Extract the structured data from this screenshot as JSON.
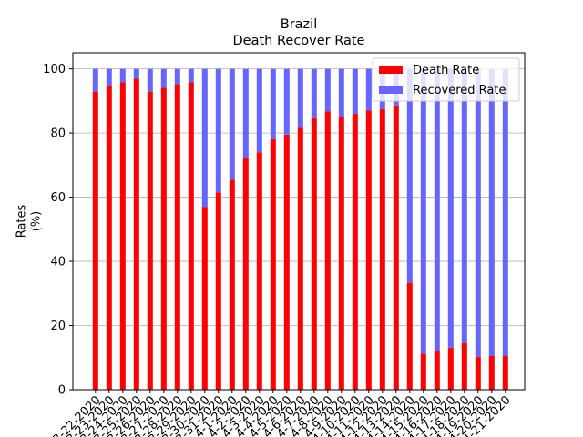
{
  "chart_data": {
    "type": "bar",
    "stacked": true,
    "title": "Brazil",
    "subtitle": "Death Recover Rate",
    "xlabel": "",
    "ylabel": "Rates\n(%)",
    "ylim": [
      0,
      105
    ],
    "yticks": [
      0,
      20,
      40,
      60,
      80,
      100
    ],
    "grid": "horizontal",
    "legend_position": "top-right",
    "categories": [
      "3-22-2020",
      "3-23-2020",
      "3-24-2020",
      "3-25-2020",
      "3-26-2020",
      "3-27-2020",
      "3-28-2020",
      "3-29-2020",
      "3-30-2020",
      "3-31-2020",
      "4-1-2020",
      "4-2-2020",
      "4-3-2020",
      "4-4-2020",
      "4-5-2020",
      "4-6-2020",
      "4-7-2020",
      "4-8-2020",
      "4-9-2020",
      "4-10-2020",
      "4-11-2020",
      "4-12-2020",
      "4-13-2020",
      "4-14-2020",
      "4-15-2020",
      "4-16-2020",
      "4-17-2020",
      "4-18-2020",
      "4-19-2020",
      "4-20-2020",
      "4-21-2020"
    ],
    "category_labels_visible": [
      "3-22-2020",
      "3-23-2020",
      "3-24-2020",
      "3-25-2020",
      "3-26-2020",
      "3-27-2020",
      "3-28-2020",
      "3-29-2020",
      "3-30-2020",
      "3-31-2020",
      "4-1-2020",
      "4-2-2020",
      "4-3-2020",
      "4-4-2020",
      "4-5-2020",
      "4-6-2020",
      "4-7-2020",
      "4-8-2020",
      "4-9-2020",
      "4-10-2020",
      "4-11-2020",
      "4-12-2020",
      "4-13-2020",
      "4-14-2020",
      "4-15-2020",
      "4-16-2020",
      "4-17-2020",
      "4-18-2020",
      "4-19-2020",
      "4-20-2020",
      "4-21-2020"
    ],
    "series": [
      {
        "name": "Death Rate",
        "color": "#ff0000",
        "values": [
          92.9,
          94.6,
          95.8,
          96.9,
          92.9,
          94.1,
          95.2,
          95.8,
          56.9,
          61.5,
          65.4,
          72.2,
          74.0,
          78.1,
          79.5,
          81.6,
          84.6,
          86.7,
          85.0,
          86.0,
          87.0,
          87.5,
          88.6,
          33.3,
          11.2,
          12.0,
          13.1,
          14.5,
          10.2,
          10.5,
          10.5
        ]
      },
      {
        "name": "Recovered Rate",
        "color": "#6666ff",
        "values": [
          7.1,
          5.4,
          4.2,
          3.1,
          7.1,
          5.9,
          4.8,
          4.2,
          43.1,
          38.5,
          34.6,
          27.8,
          26.0,
          21.9,
          20.5,
          18.4,
          15.4,
          13.3,
          15.0,
          14.0,
          13.0,
          12.5,
          11.4,
          66.7,
          88.8,
          88.0,
          86.9,
          85.5,
          89.8,
          89.5,
          89.5
        ]
      }
    ]
  }
}
